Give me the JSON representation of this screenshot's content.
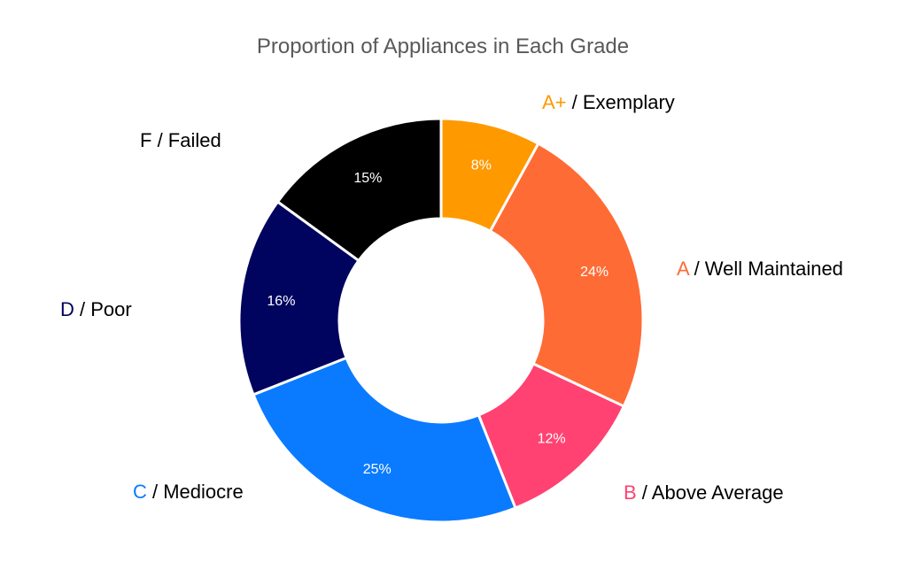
{
  "chart_data": {
    "type": "pie",
    "subtype": "donut",
    "title": "Proportion of Appliances in Each Grade",
    "slices": [
      {
        "grade": "A+",
        "desc": "Exemplary",
        "value": 8,
        "label": "8%",
        "color": "#FF9900"
      },
      {
        "grade": "A",
        "desc": "Well Maintained",
        "value": 24,
        "label": "24%",
        "color": "#FF6B35"
      },
      {
        "grade": "B",
        "desc": "Above Average",
        "value": 12,
        "label": "12%",
        "color": "#FF4272"
      },
      {
        "grade": "C",
        "desc": "Mediocre",
        "value": 25,
        "label": "25%",
        "color": "#0A7BFF"
      },
      {
        "grade": "D",
        "desc": "Poor",
        "value": 16,
        "label": "16%",
        "color": "#00045F"
      },
      {
        "grade": "F",
        "desc": "Failed",
        "value": 15,
        "label": "15%",
        "color": "#000000"
      }
    ]
  }
}
